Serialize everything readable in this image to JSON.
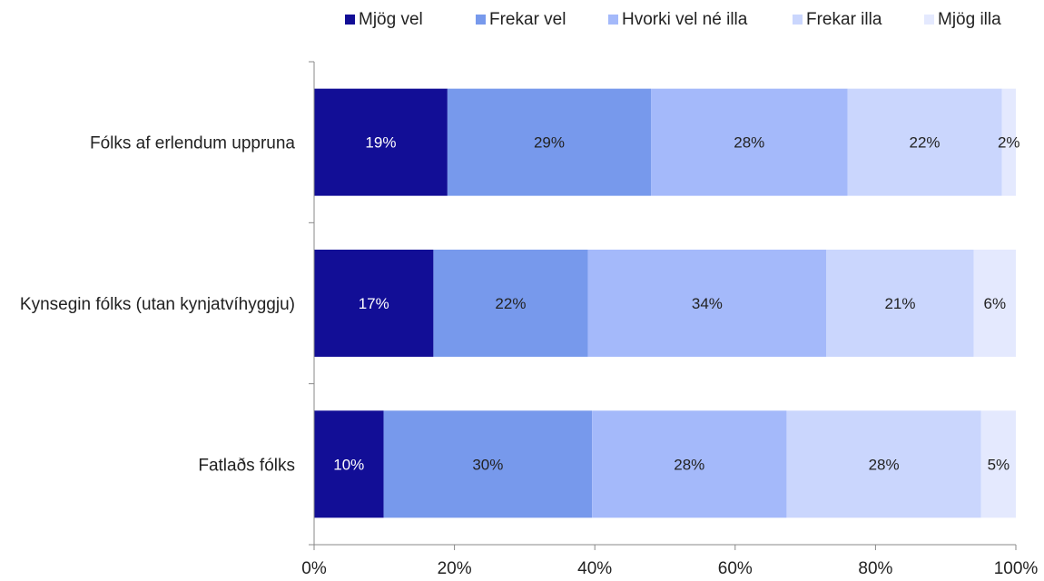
{
  "chart_data": {
    "type": "bar",
    "orientation": "horizontal",
    "stacked": true,
    "percent_stacked": true,
    "categories": [
      "Fólks af erlendum uppruna",
      "Kynsegin fólks (utan kynjatvíhyggju)",
      "Fatlaðs fólks"
    ],
    "series": [
      {
        "name": "Mjög vel",
        "color": "#120e96",
        "label_color": "#ffffff",
        "values": [
          19,
          17,
          10
        ],
        "labels": [
          "19%",
          "17%",
          "10%"
        ]
      },
      {
        "name": "Frekar vel",
        "color": "#7799ec",
        "label_color": "#222222",
        "values": [
          29,
          22,
          30
        ],
        "labels": [
          "29%",
          "22%",
          "30%"
        ]
      },
      {
        "name": "Hvorki vel né illa",
        "color": "#a4b9fa",
        "label_color": "#222222",
        "values": [
          28,
          34,
          28
        ],
        "labels": [
          "28%",
          "34%",
          "28%"
        ]
      },
      {
        "name": "Frekar illa",
        "color": "#cad6fd",
        "label_color": "#222222",
        "values": [
          22,
          21,
          28
        ],
        "labels": [
          "22%",
          "21%",
          "28%"
        ]
      },
      {
        "name": "Mjög illa",
        "color": "#e4e9fe",
        "label_color": "#222222",
        "values": [
          2,
          6,
          5
        ],
        "labels": [
          "2%",
          "6%",
          "5%"
        ]
      }
    ],
    "xaxis": {
      "ticks": [
        0,
        20,
        40,
        60,
        80,
        100
      ],
      "tick_labels": [
        "0%",
        "20%",
        "40%",
        "60%",
        "80%",
        "100%"
      ],
      "range": [
        0,
        100
      ]
    },
    "title": "",
    "xlabel": "",
    "ylabel": "",
    "grid": false,
    "legend_position": "top"
  }
}
